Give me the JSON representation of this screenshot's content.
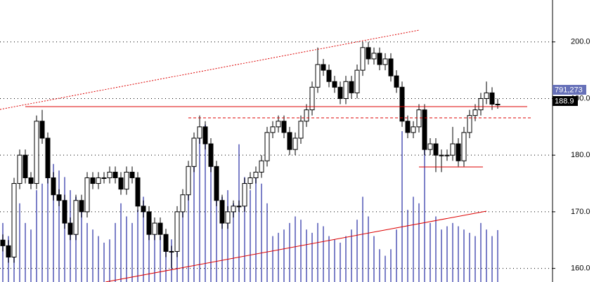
{
  "chart_data": {
    "type": "candlestick",
    "open": [
      165,
      164,
      162,
      175,
      180,
      176,
      175,
      186,
      183,
      176,
      173,
      172,
      168,
      166,
      172,
      170,
      176,
      175,
      176,
      176,
      177,
      176,
      174,
      177,
      176,
      171,
      170,
      166,
      168,
      166,
      163,
      163,
      170,
      173,
      178,
      183,
      185,
      182,
      178,
      172,
      168,
      170,
      171,
      171,
      175,
      176,
      177,
      179,
      184,
      185,
      186,
      184,
      181,
      183,
      186,
      188,
      192,
      196,
      195,
      193,
      192,
      190,
      193,
      191,
      195,
      199,
      197,
      198,
      196,
      197,
      194,
      192,
      186,
      184,
      185,
      188,
      181,
      182,
      180,
      180,
      180,
      182,
      179,
      184,
      187,
      188,
      190,
      191,
      189
    ],
    "high": [
      166,
      165,
      176,
      181,
      181,
      177,
      187,
      188,
      184,
      177,
      174,
      173,
      169,
      173,
      173,
      177,
      177,
      177,
      177,
      178,
      178,
      177,
      178,
      178,
      177,
      172,
      171,
      169,
      169,
      167,
      164,
      171,
      174,
      179,
      184,
      187,
      186,
      183,
      179,
      173,
      171,
      172,
      172,
      176,
      177,
      178,
      180,
      185,
      186,
      187,
      187,
      185,
      184,
      187,
      189,
      193,
      199,
      197,
      196,
      194,
      193,
      194,
      194,
      196,
      200,
      200,
      199,
      199,
      198,
      198,
      195,
      193,
      187,
      186,
      189,
      189,
      183,
      183,
      181,
      181,
      185,
      183,
      185,
      188,
      189,
      191,
      193,
      192,
      190
    ],
    "low": [
      163,
      161,
      161,
      174,
      175,
      174,
      174,
      182,
      175,
      172,
      171,
      167,
      165,
      165,
      169,
      169,
      174,
      174,
      175,
      175,
      175,
      173,
      173,
      175,
      170,
      169,
      165,
      165,
      165,
      162,
      160,
      162,
      169,
      172,
      177,
      182,
      181,
      177,
      171,
      167,
      167,
      169,
      170,
      170,
      174,
      175,
      176,
      178,
      183,
      184,
      183,
      180,
      180,
      182,
      185,
      187,
      191,
      194,
      192,
      191,
      189,
      189,
      190,
      190,
      194,
      196,
      196,
      195,
      195,
      193,
      191,
      185,
      183,
      183,
      184,
      180,
      180,
      177,
      177,
      179,
      179,
      178,
      178,
      183,
      186,
      187,
      189,
      188,
      188.2
    ],
    "close": [
      164,
      162,
      175,
      180,
      176,
      175,
      186,
      183,
      176,
      173,
      172,
      168,
      166,
      172,
      170,
      176,
      175,
      176,
      176,
      177,
      176,
      174,
      177,
      176,
      171,
      170,
      166,
      168,
      166,
      163,
      163,
      170,
      173,
      178,
      183,
      185,
      182,
      178,
      172,
      168,
      170,
      171,
      171,
      175,
      176,
      177,
      179,
      184,
      185,
      186,
      184,
      181,
      183,
      186,
      188,
      192,
      196,
      195,
      193,
      192,
      190,
      193,
      191,
      195,
      199,
      197,
      198,
      196,
      197,
      194,
      192,
      186,
      184,
      185,
      188,
      181,
      182,
      180,
      180,
      180,
      182,
      179,
      184,
      187,
      188,
      190,
      191,
      189,
      188.9
    ],
    "volume": [
      900000,
      700000,
      1100000,
      1200000,
      900000,
      800000,
      1400000,
      1500000,
      2100000,
      1800000,
      1700000,
      1600000,
      1400000,
      1300000,
      1200000,
      900000,
      800000,
      700000,
      600000,
      650000,
      900000,
      1200000,
      1000000,
      900000,
      1100000,
      1300000,
      1000000,
      900000,
      700000,
      600000,
      650000,
      800000,
      1100000,
      1500000,
      1900000,
      2300000,
      2400000,
      1900000,
      1500000,
      1300000,
      1400000,
      1200000,
      2100000,
      1600000,
      1400000,
      1600000,
      1500000,
      1200000,
      700000,
      750000,
      800000,
      900000,
      1000000,
      950000,
      800000,
      750000,
      900000,
      850000,
      700000,
      650000,
      600000,
      700000,
      800000,
      950000,
      1300000,
      1000000,
      700000,
      500000,
      400000,
      500000,
      800000,
      2300000,
      1100000,
      1300000,
      1200000,
      2200000,
      900000,
      1000000,
      800000,
      850000,
      900000,
      850000,
      800000,
      750000,
      700000,
      900000,
      800000,
      700000,
      791273
    ],
    "volume_last_label": "791,273",
    "up_color": "#ffffff",
    "down_color": "#000000",
    "volume_color": "#7c80c8",
    "ylim": [
      157.6,
      207.4
    ],
    "yticks": [
      {
        "value": 160,
        "label": "160.0"
      },
      {
        "value": 170,
        "label": "170.0"
      },
      {
        "value": 180,
        "label": "180.0"
      },
      {
        "value": 190,
        "label": "190.0"
      },
      {
        "value": 200,
        "label": "200.0"
      }
    ],
    "y2lim": [
      0,
      4300000
    ],
    "grid": true
  }
}
